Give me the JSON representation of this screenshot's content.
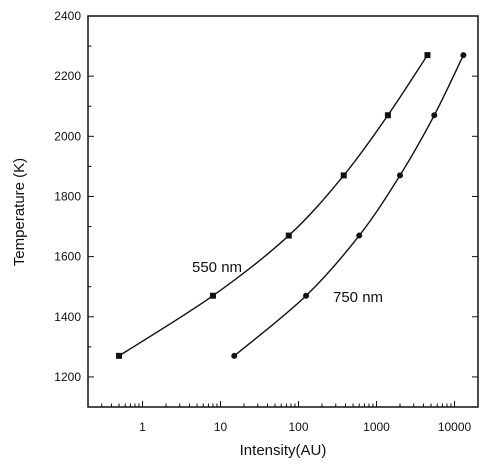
{
  "chart_data": {
    "type": "line",
    "xlabel": "Intensity(AU)",
    "ylabel": "Temperature (K)",
    "x_scale": "log",
    "xlim": [
      0.2,
      20000
    ],
    "ylim": [
      1100,
      2400
    ],
    "x_ticks": [
      1,
      10,
      100,
      1000,
      10000
    ],
    "x_tick_labels": [
      "1",
      "10",
      "100",
      "1000",
      "10000"
    ],
    "y_ticks": [
      1200,
      1400,
      1600,
      1800,
      2000,
      2200,
      2400
    ],
    "y_tick_labels": [
      "1200",
      "1400",
      "1600",
      "1800",
      "2000",
      "2200",
      "2400"
    ],
    "grid": false,
    "series": [
      {
        "name": "550 nm",
        "marker": "square",
        "points": [
          {
            "x": 0.5,
            "y": 1270
          },
          {
            "x": 8,
            "y": 1470
          },
          {
            "x": 75,
            "y": 1670
          },
          {
            "x": 380,
            "y": 1870
          },
          {
            "x": 1400,
            "y": 2070
          },
          {
            "x": 4500,
            "y": 2270
          }
        ]
      },
      {
        "name": "750 nm",
        "marker": "circle",
        "points": [
          {
            "x": 15,
            "y": 1270
          },
          {
            "x": 125,
            "y": 1470
          },
          {
            "x": 600,
            "y": 1670
          },
          {
            "x": 2000,
            "y": 1870
          },
          {
            "x": 5500,
            "y": 2070
          },
          {
            "x": 13000,
            "y": 2270
          }
        ]
      }
    ]
  }
}
